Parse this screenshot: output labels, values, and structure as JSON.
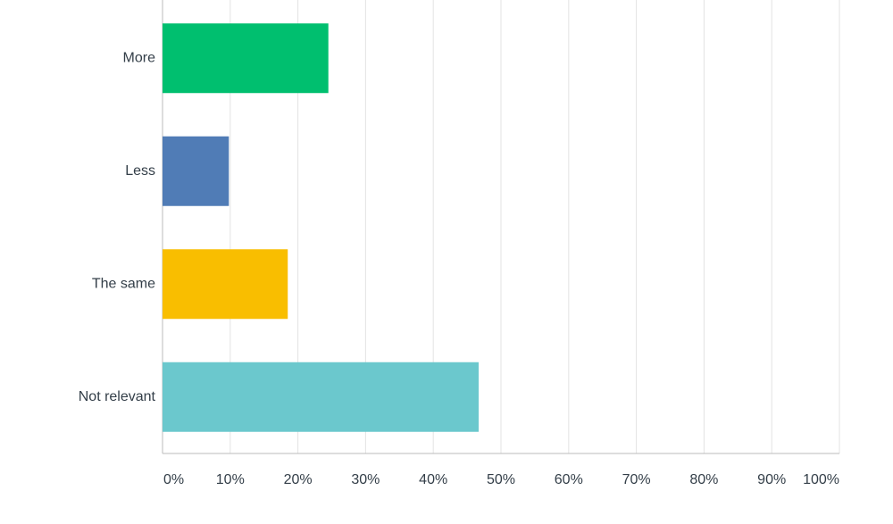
{
  "chart_data": {
    "type": "bar",
    "orientation": "horizontal",
    "categories": [
      "More",
      "Less",
      "The same",
      "Not relevant"
    ],
    "values": [
      24.5,
      9.8,
      18.5,
      46.7
    ],
    "colors": [
      "#00bf6f",
      "#507cb6",
      "#f9be00",
      "#6bc8cd"
    ],
    "xlim": [
      0,
      100
    ],
    "xticks": [
      {
        "value": 0,
        "label": "0%"
      },
      {
        "value": 10,
        "label": "10%"
      },
      {
        "value": 20,
        "label": "20%"
      },
      {
        "value": 30,
        "label": "30%"
      },
      {
        "value": 40,
        "label": "40%"
      },
      {
        "value": 50,
        "label": "50%"
      },
      {
        "value": 60,
        "label": "60%"
      },
      {
        "value": 70,
        "label": "70%"
      },
      {
        "value": 80,
        "label": "80%"
      },
      {
        "value": 90,
        "label": "90%"
      },
      {
        "value": 100,
        "label": "100%"
      }
    ],
    "grid": true
  }
}
